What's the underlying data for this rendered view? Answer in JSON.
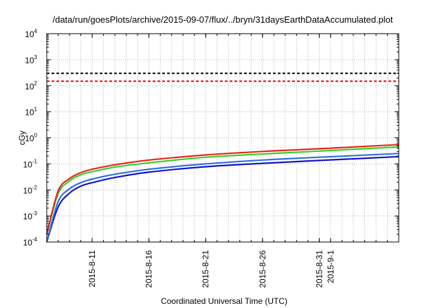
{
  "chart_data": {
    "type": "line",
    "title": "/data/run/goesPlots/archive/2015-09-07/flux/../bryn/31daysEarthDataAccumulated.plot",
    "xlabel": "Coordinated Universal Time (UTC)",
    "ylabel": "cGy",
    "yscale": "log",
    "ylim": [
      0.0001,
      10000
    ],
    "xlim": [
      "2015-08-07",
      "2015-09-07"
    ],
    "grid": true,
    "y_ticks": [
      {
        "value": 0.0001,
        "base": "10",
        "exp": "-4"
      },
      {
        "value": 0.001,
        "base": "10",
        "exp": "-3"
      },
      {
        "value": 0.01,
        "base": "10",
        "exp": "-2"
      },
      {
        "value": 0.1,
        "base": "10",
        "exp": "-1"
      },
      {
        "value": 1,
        "base": "10",
        "exp": "0"
      },
      {
        "value": 10,
        "base": "10",
        "exp": "1"
      },
      {
        "value": 100,
        "base": "10",
        "exp": "2"
      },
      {
        "value": 1000,
        "base": "10",
        "exp": "3"
      },
      {
        "value": 10000,
        "base": "10",
        "exp": "4"
      }
    ],
    "x_ticks": [
      "2015-8-11",
      "2015-8-16",
      "2015-8-21",
      "2015-8-26",
      "2015-8-31",
      "2015-9-1"
    ],
    "reference_lines": [
      {
        "value": 300,
        "color": "#000000",
        "dash": "dashed"
      },
      {
        "value": 150,
        "color": "#ff0000",
        "dash": "dashed"
      }
    ],
    "series": [
      {
        "color": "#e8231b",
        "x": [
          "2015-08-07",
          "2015-08-08",
          "2015-08-09",
          "2015-08-10",
          "2015-08-11",
          "2015-08-13",
          "2015-08-16",
          "2015-08-21",
          "2015-08-26",
          "2015-08-31",
          "2015-09-07"
        ],
        "y": [
          0.0002,
          0.009,
          0.027,
          0.046,
          0.062,
          0.092,
          0.14,
          0.22,
          0.3,
          0.38,
          0.55
        ]
      },
      {
        "color": "#37d02a",
        "x": [
          "2015-08-07",
          "2015-08-08",
          "2015-08-09",
          "2015-08-10",
          "2015-08-11",
          "2015-08-13",
          "2015-08-16",
          "2015-08-21",
          "2015-08-26",
          "2015-08-31",
          "2015-09-07"
        ],
        "y": [
          0.0002,
          0.007,
          0.022,
          0.038,
          0.05,
          0.075,
          0.11,
          0.18,
          0.24,
          0.31,
          0.45
        ]
      },
      {
        "color": "#2f6fe0",
        "x": [
          "2015-08-07",
          "2015-08-08",
          "2015-08-09",
          "2015-08-10",
          "2015-08-11",
          "2015-08-13",
          "2015-08-16",
          "2015-08-21",
          "2015-08-26",
          "2015-08-31",
          "2015-09-07"
        ],
        "y": [
          0.0001,
          0.0035,
          0.011,
          0.019,
          0.026,
          0.04,
          0.062,
          0.1,
          0.14,
          0.18,
          0.25
        ]
      },
      {
        "color": "#1515c8",
        "x": [
          "2015-08-07",
          "2015-08-08",
          "2015-08-09",
          "2015-08-10",
          "2015-08-11",
          "2015-08-13",
          "2015-08-16",
          "2015-08-21",
          "2015-08-26",
          "2015-08-31",
          "2015-09-07"
        ],
        "y": [
          0.0001,
          0.0022,
          0.0075,
          0.014,
          0.019,
          0.03,
          0.048,
          0.078,
          0.105,
          0.135,
          0.19
        ]
      }
    ],
    "series_colors_note": "red, green, light blue, dark blue"
  }
}
